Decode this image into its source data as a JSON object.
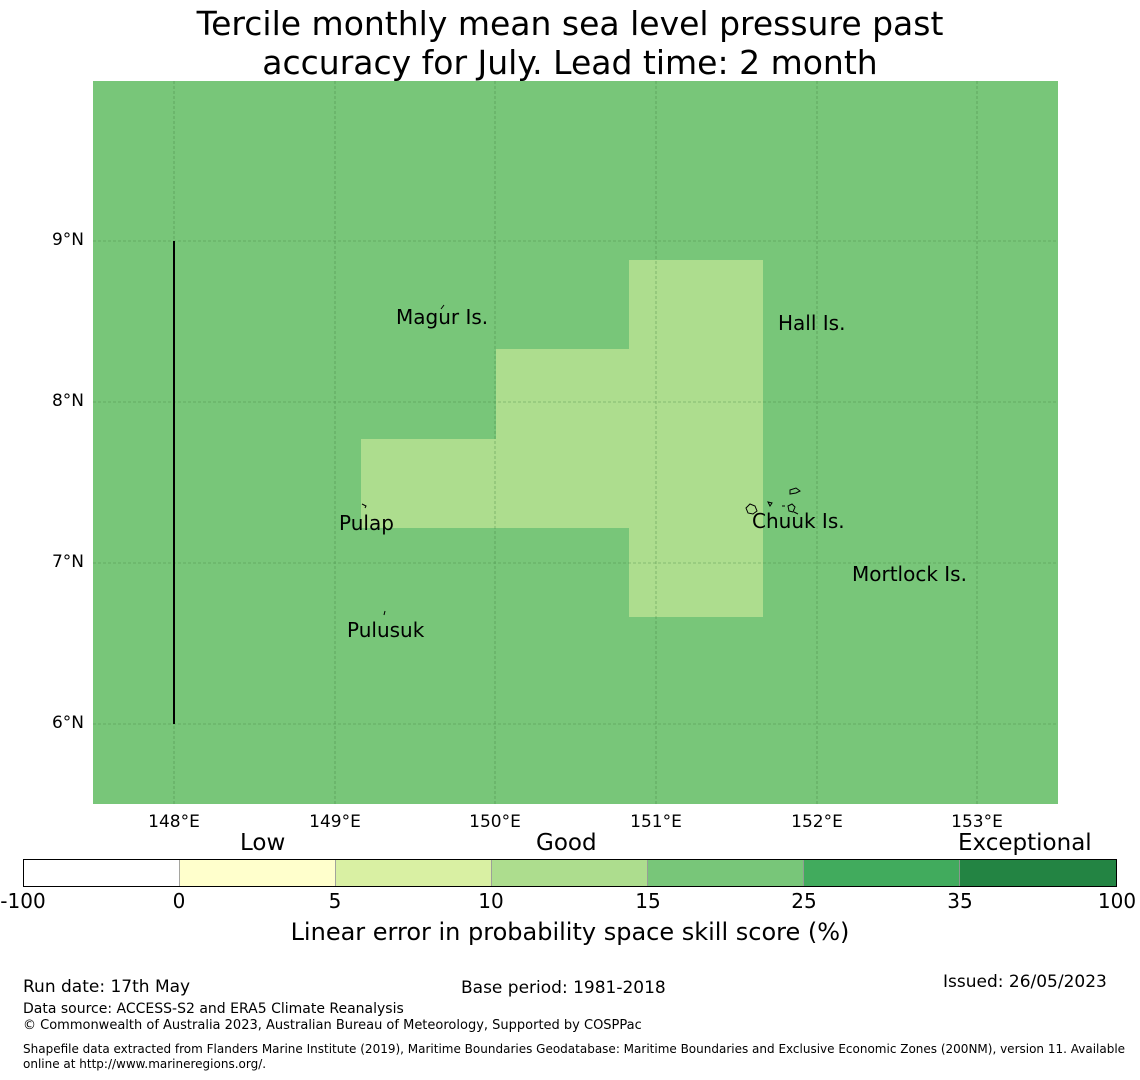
{
  "title": {
    "line1": "Tercile monthly mean sea level pressure past",
    "line2": "accuracy for July. Lead time: 2 month"
  },
  "map": {
    "background_color": "#78c679",
    "highlight_color": "#addd8e",
    "land_outline_color": "#000000",
    "lat_labels": [
      "9°N",
      "8°N",
      "7°N",
      "6°N"
    ],
    "lon_labels": [
      "148°E",
      "149°E",
      "150°E",
      "151°E",
      "152°E",
      "153°E"
    ],
    "places": {
      "magur": "Magur Is.",
      "hall": "Hall Is.",
      "pulap": "Pulap",
      "chuuk": "Chuuk Is.",
      "mortlock": "Mortlock Is.",
      "pulusuk": "Pulusuk"
    }
  },
  "colorbar": {
    "categories": {
      "low": "Low",
      "good": "Good",
      "exceptional": "Exceptional"
    },
    "ticks": [
      "-100",
      "0",
      "5",
      "10",
      "15",
      "25",
      "35",
      "100"
    ],
    "colors": [
      "#ffffff",
      "#ffffcc",
      "#d9f0a3",
      "#addd8e",
      "#78c679",
      "#41ab5d",
      "#238443"
    ],
    "title": "Linear error in probability space skill score (%)"
  },
  "footer": {
    "run_date": "Run date: 17th May",
    "base_period": "Base period: 1981-2018",
    "issued": "Issued: 26/05/2023",
    "data_source": "Data source: ACCESS-S2 and ERA5 Climate Reanalysis",
    "copyright": "© Commonwealth of Australia 2023, Australian Bureau of Meteorology, Supported by COSPPac",
    "shapefile_line1": "Shapefile data extracted from Flanders Marine Institute (2019), Maritime Boundaries Geodatabase: Maritime Boundaries and Exclusive Economic Zones (200NM), version 11. Available",
    "shapefile_line2": "online at http://www.marineregions.org/."
  }
}
